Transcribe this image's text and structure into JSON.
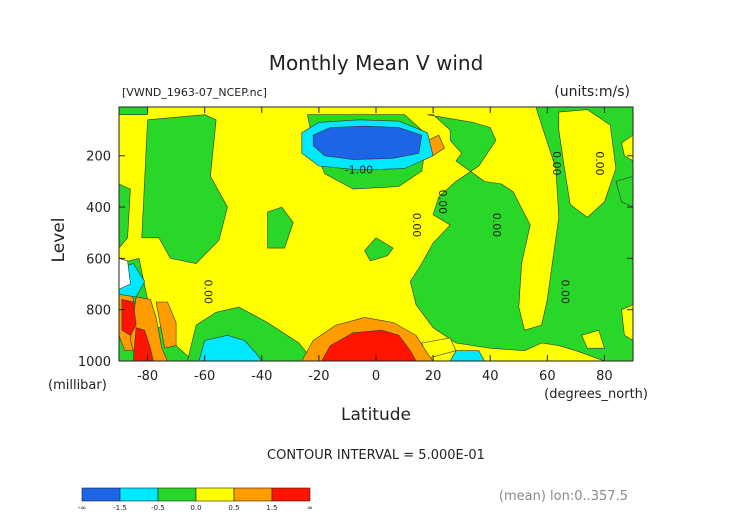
{
  "chart_data": {
    "type": "contour",
    "title": "Monthly Mean V wind",
    "subtitle_left": "[VWND_1963-07_NCEP.nc]",
    "subtitle_right": "(units:m/s)",
    "xlabel": "Latitude",
    "xunits": "(degrees_north)",
    "ylabel": "Level",
    "yunits": "(millibar)",
    "xlim": [
      -90,
      90
    ],
    "ylim": [
      1000,
      10
    ],
    "x_ticks": [
      -80,
      -60,
      -40,
      -20,
      0,
      20,
      40,
      60,
      80
    ],
    "y_ticks": [
      200,
      400,
      600,
      800,
      1000
    ],
    "contour_interval_text": "CONTOUR INTERVAL = 5.000E-01",
    "footer_text": "(mean) lon:0..357.5",
    "contour_labels": [
      {
        "text": "-1.00",
        "lat": -6,
        "level": 270
      },
      {
        "text": "0.00",
        "lat": 13,
        "level": 470
      },
      {
        "text": "0.00",
        "lat": 22,
        "level": 380
      },
      {
        "text": "0.00",
        "lat": 41,
        "level": 470
      },
      {
        "text": "0.00",
        "lat": 62,
        "level": 230
      },
      {
        "text": "0.00",
        "lat": 77,
        "level": 230
      },
      {
        "text": "0.00",
        "lat": 65,
        "level": 730
      },
      {
        "text": "0.00",
        "lat": -60,
        "level": 730
      }
    ],
    "colorbar": {
      "bins": [
        {
          "color": "#1e64e6"
        },
        {
          "color": "#00e8ff"
        },
        {
          "color": "#28d728"
        },
        {
          "color": "#ffff00"
        },
        {
          "color": "#ff9c00"
        },
        {
          "color": "#ff1400"
        }
      ],
      "labels": [
        "-∞",
        "-1.5",
        "-0.5",
        "0.0",
        "0.5",
        "1.5",
        "∞"
      ]
    },
    "regions": [
      {
        "color": "#ffff00",
        "pts": [
          [
            -90,
            10
          ],
          [
            90,
            10
          ],
          [
            90,
            1000
          ],
          [
            -90,
            1000
          ]
        ]
      },
      {
        "color": "#28d728",
        "pts": [
          [
            -90,
            10
          ],
          [
            -80,
            10
          ],
          [
            -80,
            40
          ],
          [
            -90,
            40
          ]
        ]
      },
      {
        "color": "#28d728",
        "pts": [
          [
            -90,
            310
          ],
          [
            -86,
            330
          ],
          [
            -87,
            520
          ],
          [
            -90,
            560
          ]
        ]
      },
      {
        "color": "#28d728",
        "pts": [
          [
            -90,
            620
          ],
          [
            -83,
            600
          ],
          [
            -80,
            760
          ],
          [
            -78,
            880
          ],
          [
            -72,
            850
          ],
          [
            -70,
            940
          ],
          [
            -64,
            1000
          ],
          [
            -90,
            1000
          ]
        ]
      },
      {
        "color": "#28d728",
        "pts": [
          [
            -66,
            1000
          ],
          [
            -63,
            860
          ],
          [
            -56,
            810
          ],
          [
            -48,
            790
          ],
          [
            -38,
            850
          ],
          [
            -27,
            930
          ],
          [
            -22,
            1000
          ]
        ]
      },
      {
        "color": "#28d728",
        "pts": [
          [
            -60,
            40
          ],
          [
            -56,
            60
          ],
          [
            -58,
            280
          ],
          [
            -52,
            400
          ],
          [
            -55,
            530
          ],
          [
            -63,
            620
          ],
          [
            -72,
            600
          ],
          [
            -76,
            520
          ],
          [
            -82,
            520
          ],
          [
            -80,
            60
          ]
        ]
      },
      {
        "color": "#28d728",
        "pts": [
          [
            -24,
            40
          ],
          [
            -22,
            160
          ],
          [
            -18,
            270
          ],
          [
            -8,
            330
          ],
          [
            8,
            320
          ],
          [
            16,
            260
          ],
          [
            18,
            120
          ],
          [
            10,
            40
          ]
        ]
      },
      {
        "color": "#28d728",
        "pts": [
          [
            -38,
            420
          ],
          [
            -33,
            400
          ],
          [
            -29,
            460
          ],
          [
            -32,
            560
          ],
          [
            -38,
            560
          ]
        ]
      },
      {
        "color": "#28d728",
        "pts": [
          [
            0,
            520
          ],
          [
            6,
            560
          ],
          [
            4,
            590
          ],
          [
            -2,
            610
          ],
          [
            -4,
            570
          ]
        ]
      },
      {
        "color": "#28d728",
        "pts": [
          [
            18,
            40
          ],
          [
            34,
            70
          ],
          [
            40,
            90
          ],
          [
            42,
            140
          ],
          [
            36,
            240
          ],
          [
            28,
            300
          ],
          [
            22,
            360
          ],
          [
            20,
            430
          ],
          [
            26,
            470
          ],
          [
            20,
            540
          ],
          [
            16,
            620
          ],
          [
            12,
            690
          ],
          [
            14,
            780
          ],
          [
            20,
            870
          ],
          [
            28,
            930
          ],
          [
            40,
            950
          ],
          [
            52,
            960
          ],
          [
            58,
            930
          ],
          [
            64,
            940
          ],
          [
            70,
            960
          ],
          [
            80,
            1000
          ],
          [
            90,
            1000
          ],
          [
            90,
            10
          ],
          [
            56,
            10
          ],
          [
            58,
            80
          ],
          [
            63,
            250
          ],
          [
            64,
            440
          ],
          [
            62,
            600
          ],
          [
            60,
            760
          ],
          [
            58,
            860
          ],
          [
            52,
            880
          ],
          [
            50,
            790
          ],
          [
            51,
            620
          ],
          [
            54,
            470
          ],
          [
            48,
            340
          ],
          [
            44,
            310
          ],
          [
            38,
            300
          ],
          [
            33,
            260
          ],
          [
            28,
            220
          ],
          [
            30,
            190
          ],
          [
            26,
            140
          ],
          [
            26,
            100
          ],
          [
            20,
            40
          ]
        ]
      },
      {
        "color": "#28d728",
        "pts": [
          [
            84,
            300
          ],
          [
            90,
            280
          ],
          [
            90,
            400
          ],
          [
            86,
            380
          ]
        ]
      },
      {
        "color": "#ffff00",
        "pts": [
          [
            64,
            30
          ],
          [
            74,
            20
          ],
          [
            82,
            80
          ],
          [
            84,
            250
          ],
          [
            80,
            380
          ],
          [
            74,
            440
          ],
          [
            68,
            390
          ],
          [
            66,
            250
          ],
          [
            64,
            100
          ]
        ]
      },
      {
        "color": "#ffff00",
        "pts": [
          [
            86,
            150
          ],
          [
            90,
            120
          ],
          [
            90,
            220
          ],
          [
            87,
            200
          ]
        ]
      },
      {
        "color": "#ffff00",
        "pts": [
          [
            86,
            800
          ],
          [
            90,
            780
          ],
          [
            90,
            920
          ],
          [
            87,
            900
          ]
        ]
      },
      {
        "color": "#ffff00",
        "pts": [
          [
            16,
            930
          ],
          [
            26,
            910
          ],
          [
            28,
            960
          ],
          [
            18,
            990
          ]
        ]
      },
      {
        "color": "#ffff00",
        "pts": [
          [
            72,
            900
          ],
          [
            78,
            880
          ],
          [
            80,
            950
          ],
          [
            74,
            950
          ]
        ]
      },
      {
        "color": "#ff9c00",
        "pts": [
          [
            18,
            140
          ],
          [
            22,
            120
          ],
          [
            24,
            170
          ],
          [
            20,
            200
          ]
        ]
      },
      {
        "color": "#ff9c00",
        "pts": [
          [
            -90,
            720
          ],
          [
            -86,
            720
          ],
          [
            -84,
            800
          ],
          [
            -82,
            880
          ],
          [
            -81,
            940
          ],
          [
            -84,
            960
          ],
          [
            -88,
            960
          ],
          [
            -90,
            900
          ]
        ]
      },
      {
        "color": "#ff9c00",
        "pts": [
          [
            -84,
            750
          ],
          [
            -79,
            760
          ],
          [
            -77,
            830
          ],
          [
            -75,
            950
          ],
          [
            -73,
            1000
          ],
          [
            -84,
            1000
          ],
          [
            -86,
            920
          ]
        ]
      },
      {
        "color": "#ff9c00",
        "pts": [
          [
            -77,
            770
          ],
          [
            -73,
            770
          ],
          [
            -70,
            850
          ],
          [
            -70,
            940
          ],
          [
            -74,
            950
          ]
        ]
      },
      {
        "color": "#ff9c00",
        "pts": [
          [
            -26,
            1000
          ],
          [
            -22,
            920
          ],
          [
            -14,
            860
          ],
          [
            -4,
            830
          ],
          [
            6,
            850
          ],
          [
            14,
            900
          ],
          [
            18,
            970
          ],
          [
            20,
            1000
          ]
        ]
      },
      {
        "color": "#ff1400",
        "pts": [
          [
            -89,
            760
          ],
          [
            -85,
            770
          ],
          [
            -84,
            860
          ],
          [
            -86,
            900
          ],
          [
            -89,
            880
          ]
        ]
      },
      {
        "color": "#ff1400",
        "pts": [
          [
            -84,
            870
          ],
          [
            -81,
            880
          ],
          [
            -79,
            950
          ],
          [
            -78,
            1000
          ],
          [
            -85,
            1000
          ]
        ]
      },
      {
        "color": "#ff1400",
        "pts": [
          [
            -19,
            1000
          ],
          [
            -16,
            940
          ],
          [
            -8,
            890
          ],
          [
            2,
            880
          ],
          [
            8,
            900
          ],
          [
            12,
            960
          ],
          [
            14,
            1000
          ]
        ]
      },
      {
        "color": "#00e8ff",
        "pts": [
          [
            -26,
            110
          ],
          [
            -20,
            70
          ],
          [
            -6,
            60
          ],
          [
            8,
            65
          ],
          [
            18,
            110
          ],
          [
            20,
            200
          ],
          [
            10,
            250
          ],
          [
            -6,
            255
          ],
          [
            -20,
            240
          ],
          [
            -26,
            190
          ]
        ]
      },
      {
        "color": "#1e64e6",
        "pts": [
          [
            -22,
            120
          ],
          [
            -16,
            90
          ],
          [
            -4,
            85
          ],
          [
            8,
            90
          ],
          [
            16,
            120
          ],
          [
            15,
            190
          ],
          [
            6,
            210
          ],
          [
            -8,
            215
          ],
          [
            -18,
            200
          ],
          [
            -22,
            160
          ]
        ]
      },
      {
        "color": "#00e8ff",
        "pts": [
          [
            -90,
            640
          ],
          [
            -85,
            620
          ],
          [
            -81,
            690
          ],
          [
            -84,
            750
          ],
          [
            -90,
            740
          ]
        ]
      },
      {
        "color": "#00e8ff",
        "pts": [
          [
            -62,
            1000
          ],
          [
            -60,
            920
          ],
          [
            -52,
            900
          ],
          [
            -46,
            920
          ],
          [
            -42,
            970
          ],
          [
            -40,
            1000
          ]
        ]
      },
      {
        "color": "#00e8ff",
        "pts": [
          [
            26,
            1000
          ],
          [
            28,
            960
          ],
          [
            36,
            960
          ],
          [
            38,
            1000
          ]
        ]
      },
      {
        "color": "#ffffff",
        "pts": [
          [
            -90,
            600
          ],
          [
            -87,
            610
          ],
          [
            -86,
            700
          ],
          [
            -90,
            720
          ]
        ]
      }
    ]
  }
}
